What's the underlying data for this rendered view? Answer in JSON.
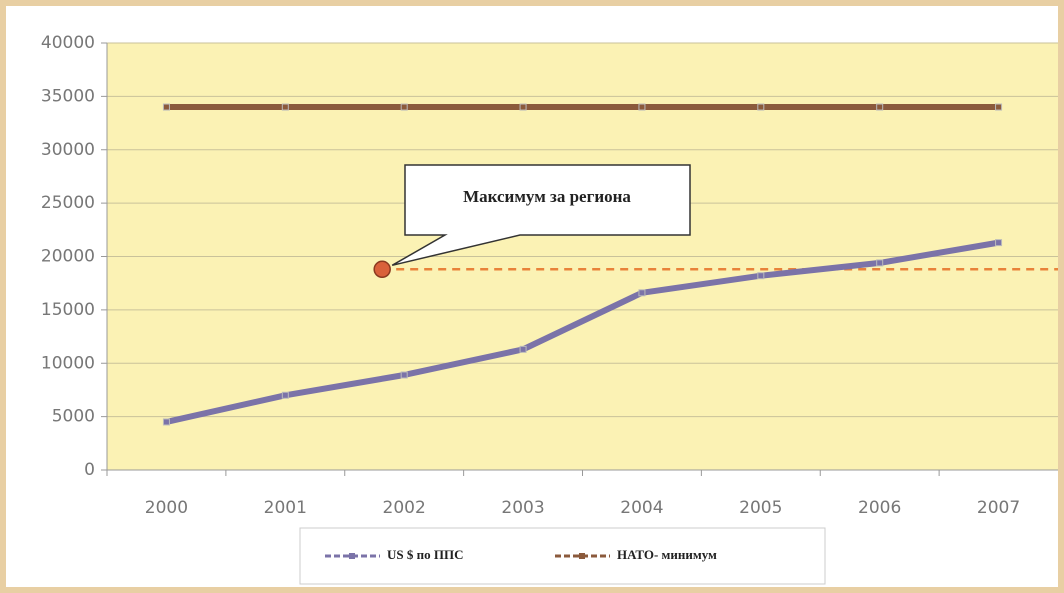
{
  "chart_data": {
    "type": "line",
    "categories": [
      "2000",
      "2001",
      "2002",
      "2003",
      "2004",
      "2005",
      "2006",
      "2007"
    ],
    "series": [
      {
        "name": "US $ по ППС",
        "color": "#7b73a8",
        "values": [
          4500,
          7000,
          8900,
          11300,
          16600,
          18200,
          19400,
          21300
        ]
      },
      {
        "name": "НАТО- минимум",
        "color": "#8b5a3c",
        "values": [
          34000,
          34000,
          34000,
          34000,
          34000,
          34000,
          34000,
          34000
        ]
      }
    ],
    "annotation": {
      "text": "Максимум за региона",
      "value": 18800,
      "color": "#e8823a"
    },
    "ylim": [
      0,
      40000
    ],
    "yticks": [
      0,
      5000,
      10000,
      15000,
      20000,
      25000,
      30000,
      35000,
      40000
    ],
    "grid": true,
    "legend": "bottom",
    "plot_color": "#fbf2b4"
  }
}
